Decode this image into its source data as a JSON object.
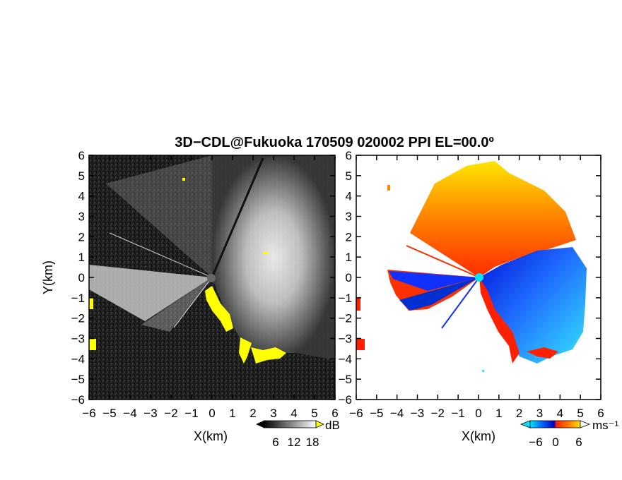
{
  "chart_data": {
    "title": "3D−CDL@Fukuoka 170509 020002 PPI EL=00.0º",
    "type": "heatmap",
    "panels": [
      {
        "id": "reflectivity",
        "xlabel": "X(km)",
        "ylabel": "Y(km)",
        "xlim": [
          -6,
          6
        ],
        "ylim": [
          -6,
          6
        ],
        "xticks": [
          "−6",
          "−5",
          "−4",
          "−3",
          "−2",
          "−1",
          "0",
          "1",
          "2",
          "3",
          "4",
          "5",
          "6"
        ],
        "yticks": [
          "−6",
          "−5",
          "−4",
          "−3",
          "−2",
          "−1",
          "0",
          "1",
          "2",
          "3",
          "4",
          "5",
          "6"
        ],
        "colorbar": {
          "unit": "dB",
          "ticks": [
            "6",
            "12",
            "18"
          ],
          "colors": [
            "#000000",
            "#ffffff"
          ],
          "flag_color": "#ffff00"
        },
        "overlay_color": "#ffff00"
      },
      {
        "id": "velocity",
        "xlabel": "X(km)",
        "ylabel": "",
        "xlim": [
          -6,
          6
        ],
        "ylim": [
          -6,
          6
        ],
        "xticks": [
          "−6",
          "−5",
          "−4",
          "−3",
          "−2",
          "−1",
          "0",
          "1",
          "2",
          "3",
          "4",
          "5",
          "6"
        ],
        "yticks": [
          "−6",
          "−5",
          "−4",
          "−3",
          "−2",
          "−1",
          "0",
          "1",
          "2",
          "3",
          "4",
          "5",
          "6"
        ],
        "colorbar": {
          "unit": "ms⁻¹",
          "ticks": [
            "−6",
            "0",
            "6"
          ],
          "colors": [
            "#00e5ff",
            "#0050ff",
            "#0000c8",
            "#ff3000",
            "#ff8000",
            "#ffe000"
          ]
        }
      }
    ]
  }
}
